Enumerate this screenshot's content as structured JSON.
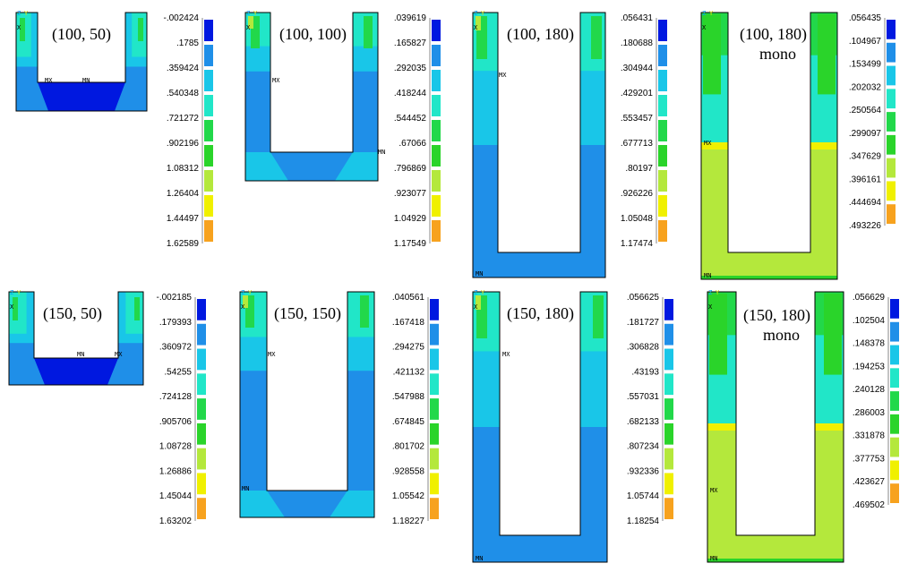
{
  "colors": {
    "c0": "#0018e0",
    "c1": "#1f8fe8",
    "c2": "#19c6e8",
    "c3": "#21e6c8",
    "c4": "#22d84a",
    "c5": "#2ad42a",
    "c6": "#b4e83c",
    "c7": "#f0f000",
    "c8": "#f7a21e",
    "c9": "#e8121a",
    "outline": "#000000"
  },
  "legend_palette": [
    "c0",
    "c1",
    "c2",
    "c3",
    "c4",
    "c5",
    "c6",
    "c7",
    "c8",
    "c9"
  ],
  "panels": [
    {
      "id": "p1",
      "label": "(100, 50)",
      "label2": "",
      "markers": [
        "MX",
        "MN"
      ],
      "legend": [
        "-.002424",
        ".1785",
        ".359424",
        ".540348",
        ".721272",
        ".902196",
        "1.08312",
        "1.26404",
        "1.44497",
        "1.62589"
      ]
    },
    {
      "id": "p2",
      "label": "(100, 100)",
      "label2": "",
      "markers": [
        "MX",
        "MN"
      ],
      "legend": [
        ".039619",
        ".165827",
        ".292035",
        ".418244",
        ".544452",
        ".67066",
        ".796869",
        ".923077",
        "1.04929",
        "1.17549"
      ]
    },
    {
      "id": "p3",
      "label": "(100, 180)",
      "label2": "",
      "markers": [
        "MX",
        "MN"
      ],
      "legend": [
        ".056431",
        ".180688",
        ".304944",
        ".429201",
        ".553457",
        ".677713",
        ".80197",
        ".926226",
        "1.05048",
        "1.17474"
      ]
    },
    {
      "id": "p4",
      "label": "(100, 180)",
      "label2": "mono",
      "markers": [
        "MX",
        "MN"
      ],
      "legend": [
        ".056435",
        ".104967",
        ".153499",
        ".202032",
        ".250564",
        ".299097",
        ".347629",
        ".396161",
        ".444694",
        ".493226"
      ]
    },
    {
      "id": "p5",
      "label": "(150, 50)",
      "label2": "",
      "markers": [
        "MN",
        "MX"
      ],
      "legend": [
        "-.002185",
        ".179393",
        ".360972",
        ".54255",
        ".724128",
        ".905706",
        "1.08728",
        "1.26886",
        "1.45044",
        "1.63202"
      ]
    },
    {
      "id": "p6",
      "label": "(150, 150)",
      "label2": "",
      "markers": [
        "MX",
        "MN"
      ],
      "legend": [
        ".040561",
        ".167418",
        ".294275",
        ".421132",
        ".547988",
        ".674845",
        ".801702",
        ".928558",
        "1.05542",
        "1.18227"
      ]
    },
    {
      "id": "p7",
      "label": "(150, 180)",
      "label2": "",
      "markers": [
        "MX",
        "MN"
      ],
      "legend": [
        ".056625",
        ".181727",
        ".306828",
        ".43193",
        ".557031",
        ".682133",
        ".807234",
        ".932336",
        "1.05744",
        "1.18254"
      ]
    },
    {
      "id": "p8",
      "label": "(150, 180)",
      "label2": "mono",
      "markers": [
        "MX",
        "MN"
      ],
      "legend": [
        ".056629",
        ".102504",
        ".148378",
        ".194253",
        ".240128",
        ".286003",
        ".331878",
        ".377753",
        ".423627",
        ".469502"
      ]
    }
  ],
  "axis_triad": {
    "z": "Z",
    "y": "Y",
    "x": "X"
  }
}
